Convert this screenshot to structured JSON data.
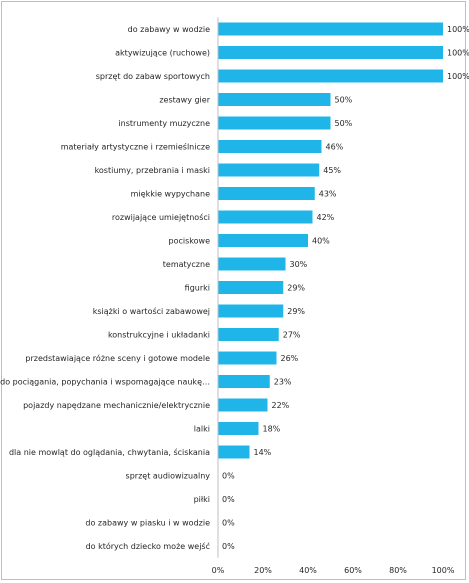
{
  "chart_data": {
    "type": "bar",
    "orientation": "horizontal",
    "categories": [
      "do zabawy w wodzie",
      "aktywizujące (ruchowe)",
      "sprzęt do zabaw sportowych",
      "zestawy gier",
      "instrumenty muzyczne",
      "materiały artystyczne i rzemieślnicze",
      "kostiumy, przebrania i maski",
      "miękkie wypychane",
      "rozwijające umiejętności",
      "pociskowe",
      "tematyczne",
      "figurki",
      "książki o wartości zabawowej",
      "konstrukcyjne i układanki",
      "przedstawiające różne sceny i gotowe modele",
      "do pociągania, popychania i wspomagające naukę…",
      "pojazdy napędzane mechanicznie/elektrycznie",
      "lalki",
      "dla nie mowląt do oglądania, chwytania, ściskania",
      "sprzęt audiowizualny",
      "piłki",
      "do zabawy w piasku i w wodzie",
      "do których dziecko może wejść"
    ],
    "values": [
      100,
      100,
      100,
      50,
      50,
      46,
      45,
      43,
      42,
      40,
      30,
      29,
      29,
      27,
      26,
      23,
      22,
      18,
      14,
      0,
      0,
      0,
      0
    ],
    "value_labels": [
      "100%",
      "100%",
      "100%",
      "50%",
      "50%",
      "46%",
      "45%",
      "43%",
      "42%",
      "40%",
      "30%",
      "29%",
      "29%",
      "27%",
      "26%",
      "23%",
      "22%",
      "18%",
      "14%",
      "0%",
      "0%",
      "0%",
      "0%"
    ],
    "xticks": [
      0,
      20,
      40,
      60,
      80,
      100
    ],
    "xtick_labels": [
      "0%",
      "20%",
      "40%",
      "60%",
      "80%",
      "100%"
    ],
    "xlim": [
      0,
      100
    ],
    "title": "",
    "xlabel": "",
    "ylabel": "",
    "grid": false,
    "legend": "none",
    "bar_color": "#1fb5e8"
  }
}
